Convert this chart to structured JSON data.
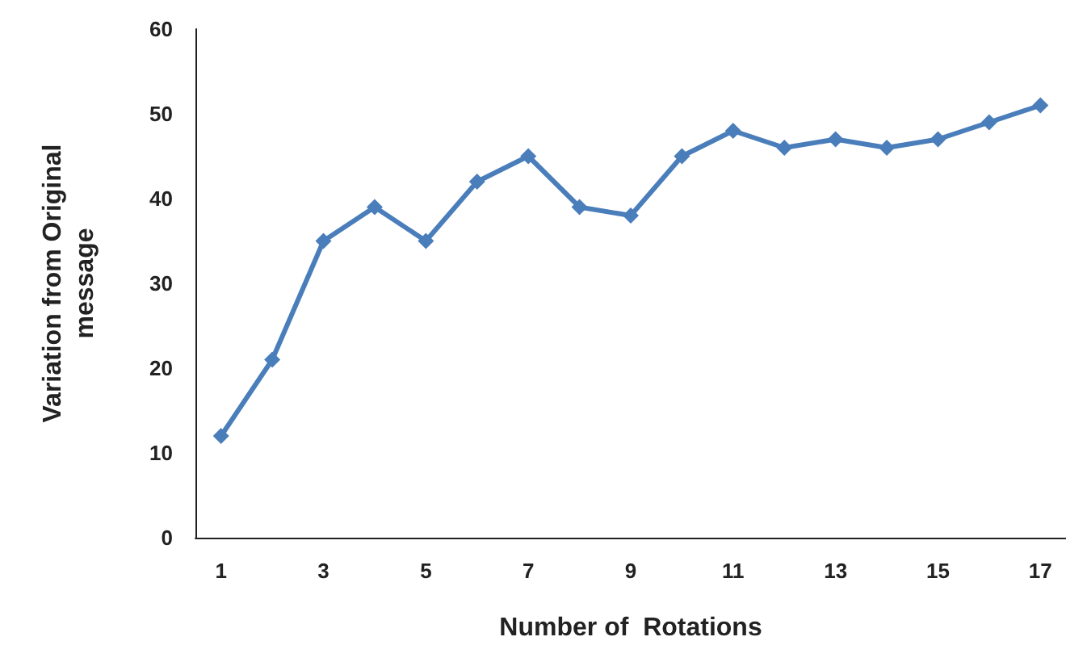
{
  "chart_data": {
    "type": "line",
    "xlabel": "Number of  Rotations",
    "ylabel": "Variation from Original\nmessage",
    "x": [
      1,
      2,
      3,
      4,
      5,
      6,
      7,
      8,
      9,
      10,
      11,
      12,
      13,
      14,
      15,
      16,
      17
    ],
    "series": [
      {
        "color": "#4a7ebb",
        "values": [
          12,
          21,
          35,
          39,
          35,
          42,
          45,
          39,
          38,
          45,
          48,
          46,
          47,
          46,
          47,
          49,
          51
        ]
      }
    ],
    "xlim": [
      0.5,
      17.5
    ],
    "xticks": [
      1,
      3,
      5,
      7,
      9,
      11,
      13,
      15,
      17
    ],
    "ylim": [
      0,
      60
    ],
    "yticks": [
      0,
      10,
      20,
      30,
      40,
      50,
      60
    ],
    "grid": false,
    "marker": "diamond",
    "line_style": "solid"
  }
}
